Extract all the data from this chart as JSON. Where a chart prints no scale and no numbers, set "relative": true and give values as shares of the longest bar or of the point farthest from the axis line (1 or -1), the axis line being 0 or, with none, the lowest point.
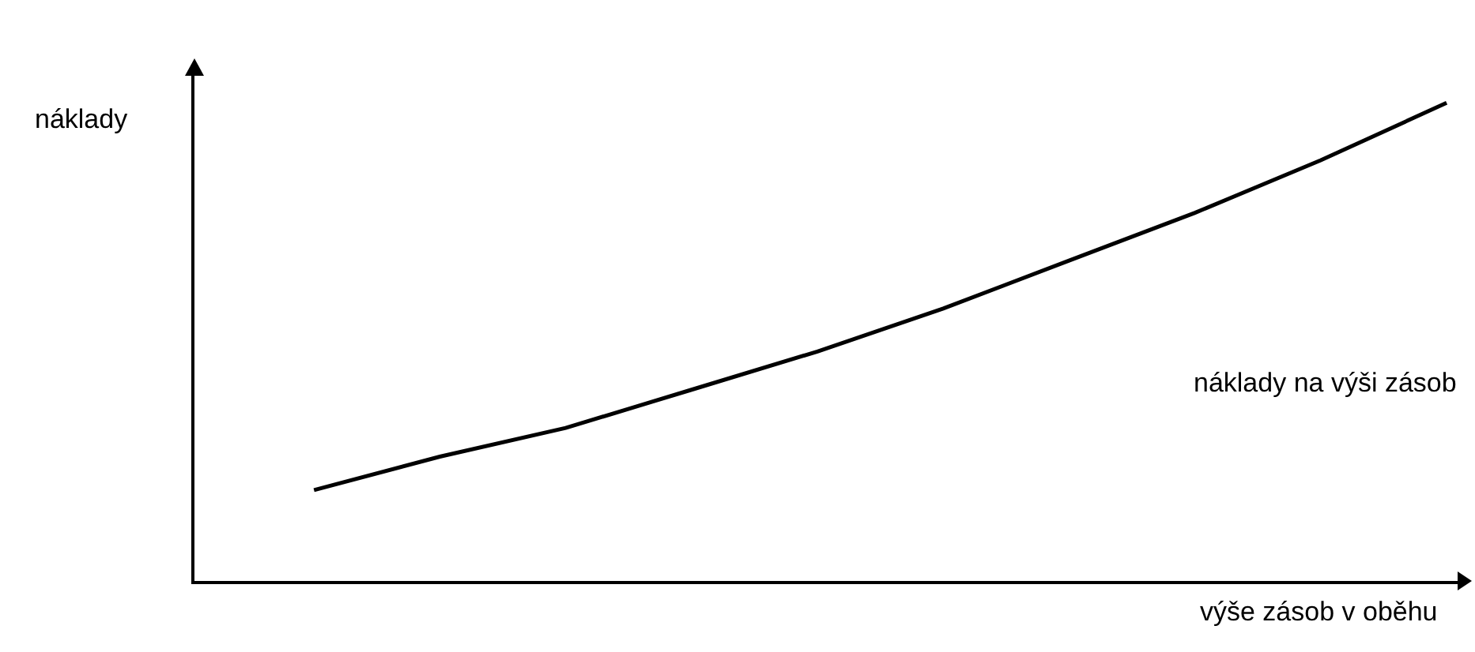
{
  "chart_data": {
    "type": "line",
    "relative": true,
    "xlabel": "výše zásob v oběhu",
    "ylabel": "náklady",
    "categories": [
      null,
      null,
      null,
      null,
      null,
      null,
      null,
      null,
      null,
      null
    ],
    "series": [
      {
        "name": "náklady na výši zásob",
        "color": "#000000",
        "values": [
          0.19,
          0.26,
          0.32,
          0.4,
          0.48,
          0.57,
          0.67,
          0.77,
          0.88,
          1
        ]
      }
    ],
    "legend": false,
    "marker": "none",
    "line_style": "solid"
  }
}
